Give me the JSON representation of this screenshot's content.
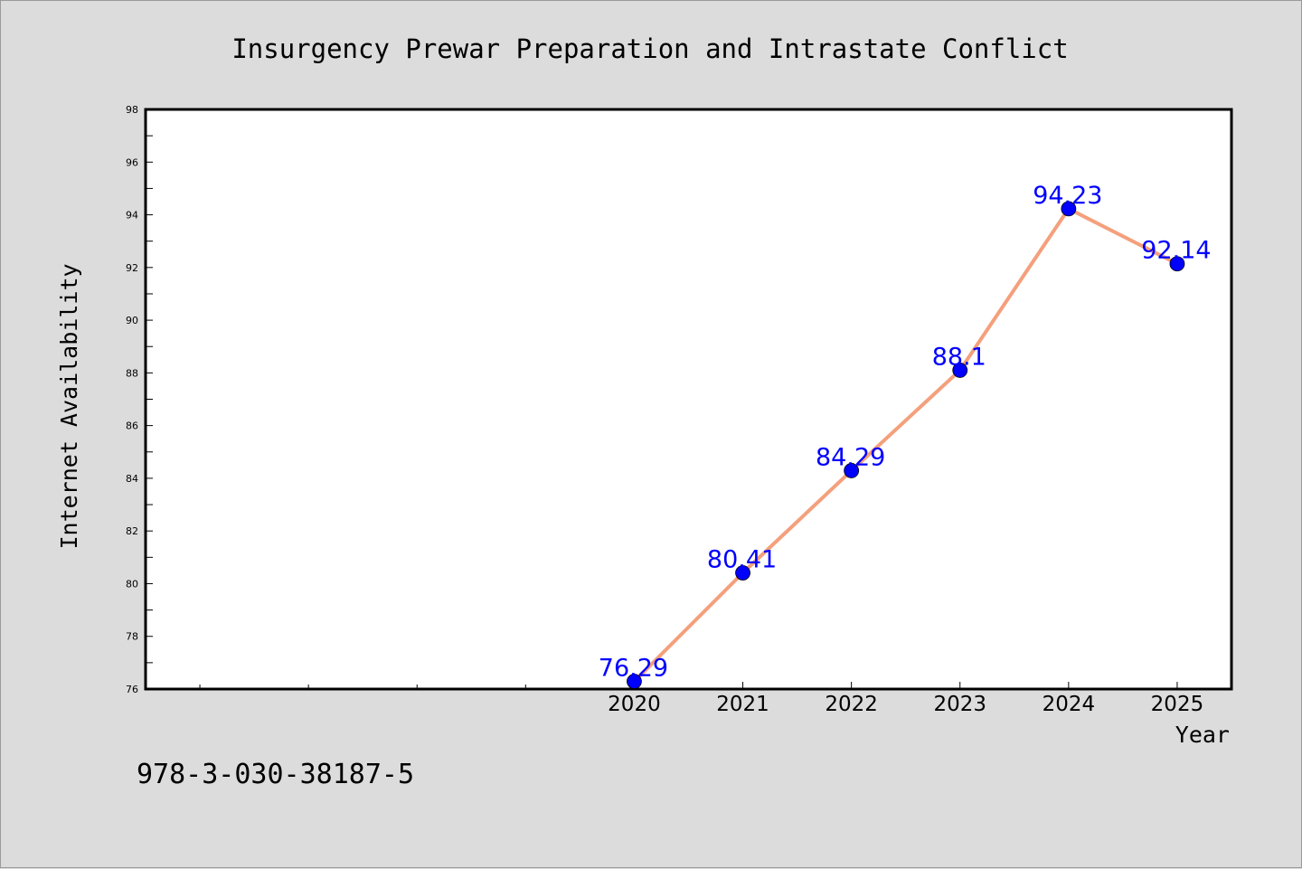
{
  "chart_data": {
    "type": "line",
    "title": "Insurgency Prewar Preparation and Intrastate Conflict",
    "xlabel": "Year",
    "ylabel": "Internet Availability",
    "x": [
      2020,
      2021,
      2022,
      2023,
      2024,
      2025
    ],
    "series": [
      {
        "values": [
          76.29,
          80.41,
          84.29,
          88.1,
          94.23,
          92.14
        ],
        "labels": [
          "76.29",
          "80.41",
          "84.29",
          "88.1",
          "94.23",
          "92.14"
        ]
      }
    ],
    "xlim": [
      2015.5,
      2025.5
    ],
    "ylim": [
      76,
      98
    ],
    "yticks": [
      76,
      78,
      80,
      82,
      84,
      86,
      88,
      90,
      92,
      94,
      96,
      98
    ],
    "grid": false,
    "legend": "none",
    "line_color": "#f4a07c",
    "marker_color": "#0000ff"
  },
  "footer": {
    "isbn": "978-3-030-38187-5"
  }
}
